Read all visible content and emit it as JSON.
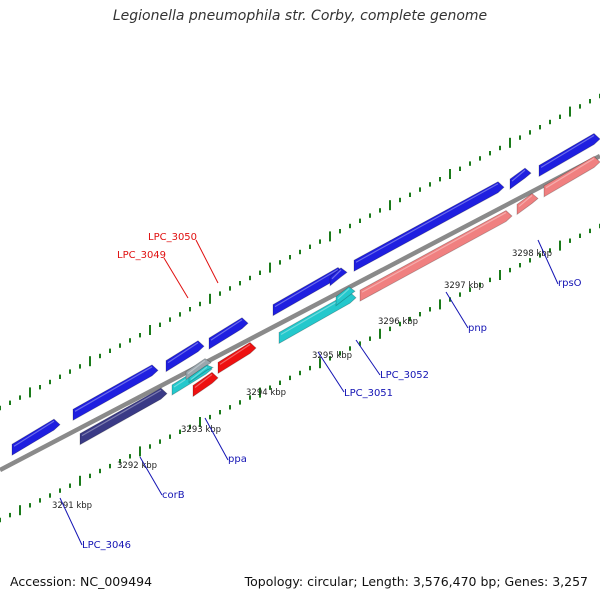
{
  "title": "Legionella pneumophila str. Corby, complete genome",
  "footer": {
    "accession": "Accession: NC_009494",
    "summary": "Topology: circular; Length: 3,576,470 bp; Genes: 3,257"
  },
  "colors": {
    "backbone": "#8a8a8a",
    "tick": "#1a7a1a",
    "gene_blue": "#1f1fe0",
    "gene_cyan": "#24c8cc",
    "gene_salmon": "#f08080",
    "gene_navy": "#3a3a86",
    "gene_red": "#ee1111",
    "label_blue": "#1414b4",
    "label_red": "#e01010",
    "kbp_text": "#222222"
  },
  "kbp_labels": [
    "3291 kbp",
    "3292 kbp",
    "3293 kbp",
    "3294 kbp",
    "3295 kbp",
    "3296 kbp",
    "3297 kbp",
    "3298 kbp"
  ],
  "gene_labels": [
    {
      "text": "LPC_3050",
      "color": "red"
    },
    {
      "text": "LPC_3049",
      "color": "red"
    },
    {
      "text": "LPC_3052",
      "color": "blue"
    },
    {
      "text": "LPC_3051",
      "color": "blue"
    },
    {
      "text": "pnp",
      "color": "blue"
    },
    {
      "text": "rpsO",
      "color": "blue"
    },
    {
      "text": "ppa",
      "color": "blue"
    },
    {
      "text": "corB",
      "color": "blue"
    },
    {
      "text": "LPC_3046",
      "color": "blue"
    }
  ]
}
